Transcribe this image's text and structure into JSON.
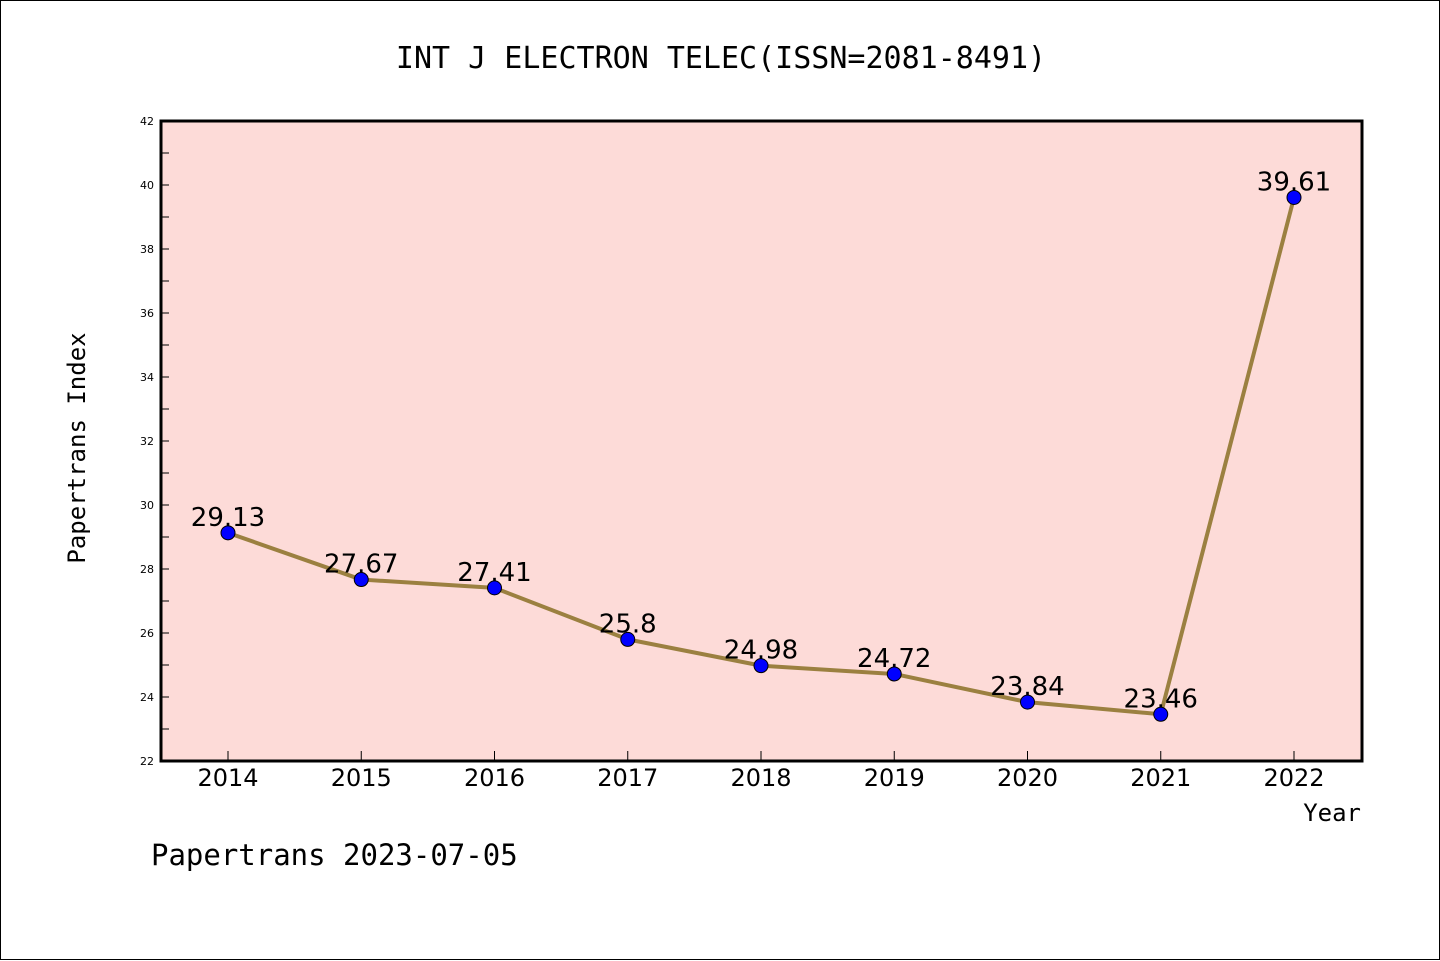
{
  "chart_data": {
    "type": "line",
    "title": "INT J ELECTRON TELEC(ISSN=2081-8491)",
    "xlabel": "Year",
    "ylabel": "Papertrans Index",
    "categories": [
      "2014",
      "2015",
      "2016",
      "2017",
      "2018",
      "2019",
      "2020",
      "2021",
      "2022"
    ],
    "series": [
      {
        "values": [
          29.13,
          27.67,
          27.41,
          25.8,
          24.98,
          24.72,
          23.84,
          23.46,
          39.61
        ],
        "labels": [
          "29.13",
          "27.67",
          "27.41",
          "25.8",
          "24.98",
          "24.72",
          "23.84",
          "23.46",
          "39.61"
        ]
      }
    ],
    "ylim": [
      22,
      42
    ],
    "yticks": [
      "22",
      "24",
      "26",
      "28",
      "30",
      "32",
      "34",
      "36",
      "38",
      "40",
      "42"
    ],
    "grid": false,
    "colors": {
      "plot_bg": "#fddbd8",
      "line": "#9b8040",
      "marker": "#0000ff"
    }
  },
  "footer": "Papertrans 2023-07-05"
}
